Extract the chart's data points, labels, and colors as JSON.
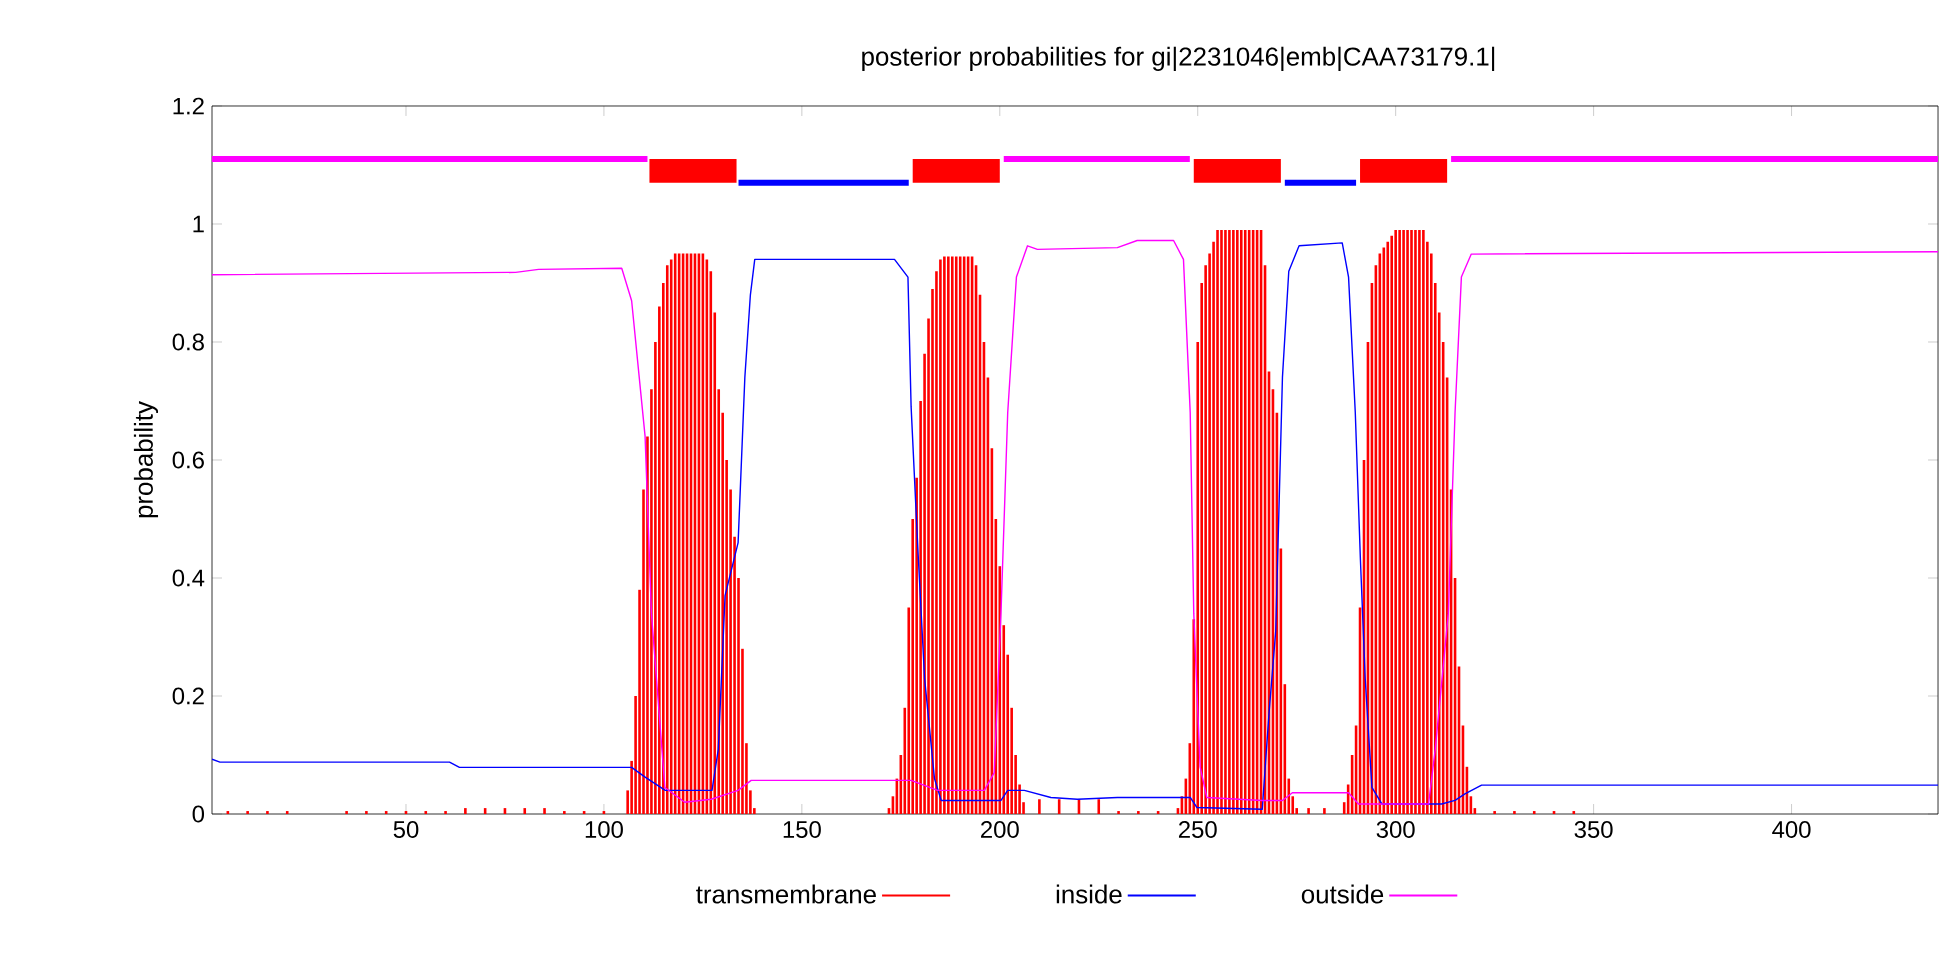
{
  "chart_data": {
    "type": "line",
    "title": "posterior probabilities for gi|2231046|emb|CAA73179.1|",
    "ylabel": "probability",
    "xlim": [
      1,
      437
    ],
    "ylim": [
      0,
      1.2
    ],
    "xticks": [
      50,
      100,
      150,
      200,
      250,
      300,
      350,
      400
    ],
    "yticks": [
      0,
      0.2,
      0.4,
      0.6,
      0.8,
      1,
      1.2
    ],
    "legend": "bottom",
    "grid": false,
    "series": [
      {
        "name": "transmembrane",
        "type": "bar",
        "color": "#ff0000",
        "x": [
          5,
          10,
          15,
          20,
          35,
          40,
          45,
          50,
          55,
          60,
          65,
          70,
          75,
          80,
          85,
          90,
          95,
          100,
          106,
          107,
          108,
          109,
          110,
          111,
          112,
          113,
          114,
          115,
          116,
          117,
          118,
          119,
          120,
          121,
          122,
          123,
          124,
          125,
          126,
          127,
          128,
          129,
          130,
          131,
          132,
          133,
          134,
          135,
          136,
          137,
          138,
          172,
          173,
          174,
          175,
          176,
          177,
          178,
          179,
          180,
          181,
          182,
          183,
          184,
          185,
          186,
          187,
          188,
          189,
          190,
          191,
          192,
          193,
          194,
          195,
          196,
          197,
          198,
          199,
          200,
          201,
          202,
          203,
          204,
          205,
          206,
          210,
          215,
          220,
          225,
          230,
          235,
          240,
          245,
          246,
          247,
          248,
          249,
          250,
          251,
          252,
          253,
          254,
          255,
          256,
          257,
          258,
          259,
          260,
          261,
          262,
          263,
          264,
          265,
          266,
          267,
          268,
          269,
          270,
          271,
          272,
          273,
          274,
          275,
          278,
          282,
          287,
          288,
          289,
          290,
          291,
          292,
          293,
          294,
          295,
          296,
          297,
          298,
          299,
          300,
          301,
          302,
          303,
          304,
          305,
          306,
          307,
          308,
          309,
          310,
          311,
          312,
          313,
          314,
          315,
          316,
          317,
          318,
          319,
          320,
          325,
          330,
          335,
          340,
          345
        ],
        "values": [
          0.005,
          0.005,
          0.005,
          0.005,
          0.005,
          0.005,
          0.005,
          0.005,
          0.005,
          0.005,
          0.01,
          0.01,
          0.01,
          0.01,
          0.01,
          0.005,
          0.005,
          0.005,
          0.04,
          0.09,
          0.2,
          0.38,
          0.55,
          0.64,
          0.72,
          0.8,
          0.86,
          0.9,
          0.93,
          0.94,
          0.95,
          0.95,
          0.95,
          0.95,
          0.95,
          0.95,
          0.95,
          0.95,
          0.94,
          0.92,
          0.85,
          0.72,
          0.68,
          0.6,
          0.55,
          0.47,
          0.4,
          0.28,
          0.12,
          0.04,
          0.01,
          0.01,
          0.03,
          0.06,
          0.1,
          0.18,
          0.35,
          0.5,
          0.57,
          0.7,
          0.78,
          0.84,
          0.89,
          0.92,
          0.94,
          0.945,
          0.945,
          0.945,
          0.945,
          0.945,
          0.945,
          0.945,
          0.945,
          0.93,
          0.88,
          0.8,
          0.74,
          0.62,
          0.5,
          0.42,
          0.32,
          0.27,
          0.18,
          0.1,
          0.05,
          0.02,
          0.025,
          0.025,
          0.025,
          0.025,
          0.005,
          0.005,
          0.005,
          0.01,
          0.03,
          0.06,
          0.12,
          0.33,
          0.8,
          0.9,
          0.93,
          0.95,
          0.97,
          0.99,
          0.99,
          0.99,
          0.99,
          0.99,
          0.99,
          0.99,
          0.99,
          0.99,
          0.99,
          0.99,
          0.99,
          0.93,
          0.75,
          0.72,
          0.68,
          0.45,
          0.22,
          0.06,
          0.03,
          0.01,
          0.01,
          0.01,
          0.02,
          0.05,
          0.1,
          0.15,
          0.35,
          0.6,
          0.8,
          0.9,
          0.93,
          0.95,
          0.96,
          0.97,
          0.98,
          0.99,
          0.99,
          0.99,
          0.99,
          0.99,
          0.99,
          0.99,
          0.99,
          0.97,
          0.95,
          0.9,
          0.85,
          0.8,
          0.74,
          0.55,
          0.4,
          0.25,
          0.15,
          0.08,
          0.03,
          0.01,
          0.005,
          0.005,
          0.005,
          0.005,
          0.005
        ]
      },
      {
        "name": "inside",
        "color": "#0000ff",
        "x": [
          1,
          3,
          61,
          63.5,
          107,
          110.5,
          115.5,
          127.3,
          128.9,
          130.6,
          133.9,
          135.6,
          137,
          138.1,
          173.4,
          176.8,
          177.6,
          179.3,
          181,
          183.5,
          185.2,
          200.3,
          202,
          206.2,
          212.9,
          219.6,
          229.7,
          248.1,
          249.8,
          266.3,
          268,
          269.7,
          271.4,
          273,
          275.6,
          286.5,
          288.1,
          289.8,
          291.1,
          292.3,
          294,
          296.5,
          311.6,
          315,
          317.5,
          321.7,
          437
        ],
        "values": [
          0.093,
          0.088,
          0.088,
          0.079,
          0.079,
          0.062,
          0.04,
          0.04,
          0.11,
          0.37,
          0.46,
          0.74,
          0.88,
          0.94,
          0.94,
          0.91,
          0.69,
          0.45,
          0.23,
          0.06,
          0.023,
          0.023,
          0.04,
          0.04,
          0.028,
          0.025,
          0.028,
          0.028,
          0.011,
          0.008,
          0.17,
          0.31,
          0.74,
          0.92,
          0.963,
          0.968,
          0.91,
          0.68,
          0.43,
          0.23,
          0.045,
          0.017,
          0.017,
          0.023,
          0.034,
          0.049,
          0.049
        ]
      },
      {
        "name": "outside",
        "color": "#ff00ff",
        "x": [
          1,
          77.7,
          83.5,
          104.5,
          107,
          110.4,
          112,
          115.4,
          120.4,
          127.1,
          133.9,
          137.2,
          177.6,
          184.3,
          196.1,
          198.6,
          200.3,
          202,
          204.2,
          207,
          209.5,
          229.7,
          234.7,
          243.9,
          246.4,
          248.1,
          249,
          250.6,
          252.3,
          266.3,
          271.4,
          273.9,
          288.1,
          290.6,
          308.3,
          310,
          313.3,
          315,
          316.6,
          319.1,
          437
        ],
        "values": [
          0.914,
          0.918,
          0.923,
          0.925,
          0.87,
          0.64,
          0.34,
          0.045,
          0.02,
          0.025,
          0.04,
          0.057,
          0.057,
          0.04,
          0.04,
          0.07,
          0.34,
          0.68,
          0.91,
          0.963,
          0.957,
          0.96,
          0.972,
          0.972,
          0.94,
          0.68,
          0.34,
          0.08,
          0.028,
          0.023,
          0.023,
          0.036,
          0.036,
          0.017,
          0.017,
          0.11,
          0.34,
          0.68,
          0.91,
          0.949,
          0.953
        ]
      },
      {
        "color": "#ff00ff",
        "x": [
          1,
          111,
          null,
          201,
          248,
          null,
          314,
          437
        ],
        "values": [
          1.11,
          1.11,
          null,
          1.11,
          1.11,
          null,
          1.11,
          1.11
        ]
      },
      {
        "color": "#0000ff",
        "x": [
          134,
          177,
          null,
          272,
          290
        ],
        "values": [
          1.07,
          1.07,
          null,
          1.07,
          1.07
        ]
      },
      {
        "type": "bar",
        "color": "#ff0000",
        "x": [
          122.5,
          189,
          260,
          302
        ],
        "base": [
          1.07,
          1.07,
          1.07,
          1.07
        ],
        "values": [
          0.04,
          0.04,
          0.04,
          0.04
        ]
      }
    ]
  }
}
